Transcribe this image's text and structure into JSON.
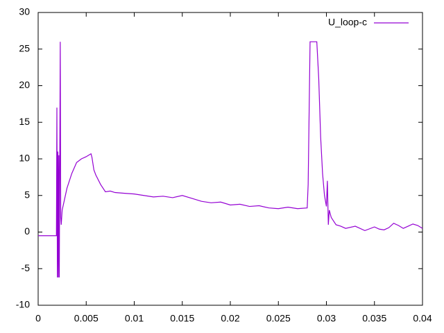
{
  "chart_data": {
    "type": "line",
    "x": [
      0,
      0.0005,
      0.001,
      0.0015,
      0.0019,
      0.00195,
      0.002,
      0.00205,
      0.0021,
      0.00215,
      0.0022,
      0.00225,
      0.0023,
      0.00235,
      0.0024,
      0.0025,
      0.003,
      0.0035,
      0.004,
      0.0045,
      0.005,
      0.0055,
      0.0056,
      0.0058,
      0.006,
      0.0065,
      0.007,
      0.0075,
      0.008,
      0.009,
      0.01,
      0.011,
      0.012,
      0.013,
      0.014,
      0.015,
      0.016,
      0.017,
      0.018,
      0.019,
      0.02,
      0.021,
      0.022,
      0.023,
      0.024,
      0.025,
      0.026,
      0.027,
      0.028,
      0.0281,
      0.0283,
      0.0285,
      0.0288,
      0.029,
      0.0292,
      0.0294,
      0.0296,
      0.0298,
      0.03,
      0.0301,
      0.0302,
      0.0303,
      0.0305,
      0.031,
      0.0315,
      0.032,
      0.033,
      0.034,
      0.035,
      0.0355,
      0.036,
      0.0365,
      0.037,
      0.0375,
      0.038,
      0.0385,
      0.039,
      0.0395,
      0.04
    ],
    "series": [
      {
        "name": "U_loop-c",
        "color": "#9400d3",
        "values": [
          -0.5,
          -0.5,
          -0.5,
          -0.5,
          -0.5,
          17,
          -6.2,
          11,
          -6.2,
          10.5,
          -6.2,
          10,
          26,
          2,
          1,
          3,
          6,
          8,
          9.5,
          10,
          10.3,
          10.7,
          10.2,
          8.5,
          7.8,
          6.5,
          5.5,
          5.6,
          5.4,
          5.3,
          5.2,
          5.0,
          4.8,
          4.9,
          4.7,
          5.0,
          4.6,
          4.2,
          4.0,
          4.1,
          3.7,
          3.8,
          3.5,
          3.6,
          3.3,
          3.2,
          3.4,
          3.2,
          3.3,
          6.5,
          26,
          26,
          26,
          26,
          21,
          13,
          8,
          5,
          3.5,
          7,
          1,
          3,
          2,
          1,
          0.8,
          0.5,
          0.8,
          0.2,
          0.7,
          0.4,
          0.3,
          0.6,
          1.2,
          0.9,
          0.5,
          0.8,
          1.1,
          0.9,
          0.5
        ]
      }
    ],
    "xlim": [
      0,
      0.04
    ],
    "xticks": [
      0,
      0.005,
      0.01,
      0.015,
      0.02,
      0.025,
      0.03,
      0.035,
      0.04
    ],
    "ylim": [
      -10,
      30
    ],
    "yticks": [
      -10,
      -5,
      0,
      5,
      10,
      15,
      20,
      25,
      30
    ],
    "grid": false,
    "legend": "top-right"
  }
}
